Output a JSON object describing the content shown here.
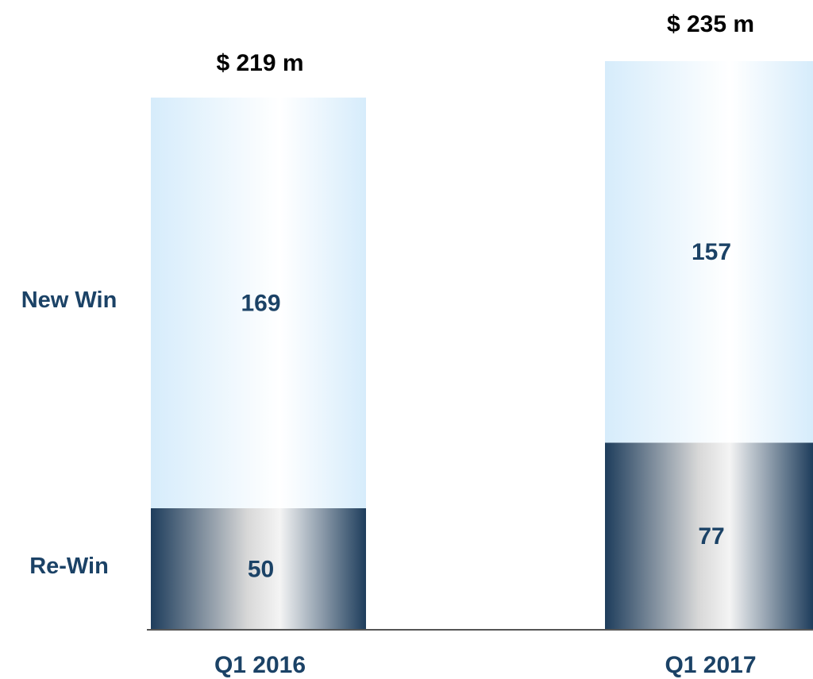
{
  "chart_data": {
    "type": "stacked-bar",
    "categories": [
      "Q1 2016",
      "Q1 2017"
    ],
    "series": [
      {
        "name": "Re-Win",
        "color": "#1e3d5c",
        "values": [
          50,
          77
        ]
      },
      {
        "name": "New Win",
        "color": "#d6ecfb",
        "values": [
          169,
          157
        ]
      }
    ],
    "totals": {
      "values": [
        219,
        235
      ],
      "value_labels": [
        "$ 219 m",
        "$ 235 m"
      ]
    },
    "ylim": [
      0,
      240
    ]
  }
}
